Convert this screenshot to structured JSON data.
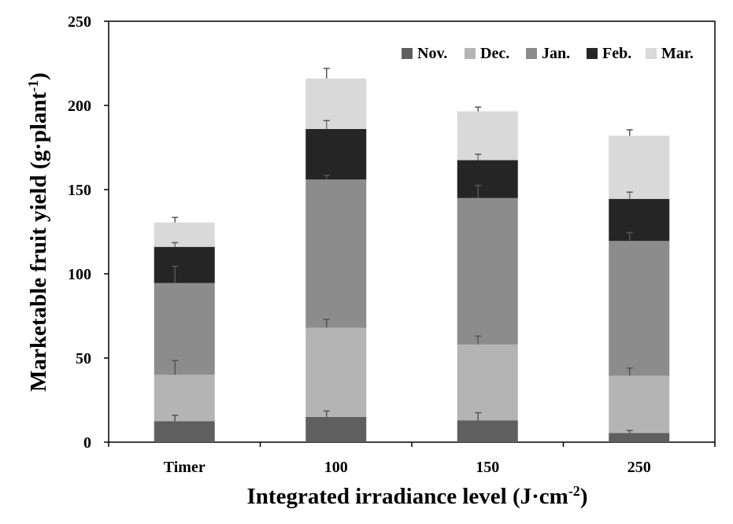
{
  "chart_data": {
    "type": "bar",
    "stacked": true,
    "title": "",
    "xlabel_main": "Integrated irradiance level (J·cm",
    "xlabel_sup": "-2",
    "xlabel_end": ")",
    "ylabel_main": "Marketable fruit yield (g·plant",
    "ylabel_sup": "-1",
    "ylabel_end": ")",
    "categories": [
      "Timer",
      "100",
      "150",
      "250"
    ],
    "ylim": [
      0,
      250
    ],
    "yticks": [
      0,
      50,
      100,
      150,
      200,
      250
    ],
    "grid": false,
    "legend_position": "top-right",
    "series": [
      {
        "name": "Nov.",
        "color": "#5f5f5f",
        "values": [
          12.5,
          15,
          13,
          5.5
        ],
        "errors": [
          3.5,
          3.5,
          4.5,
          1.5
        ]
      },
      {
        "name": "Dec.",
        "color": "#b4b4b4",
        "values": [
          27.5,
          53,
          45,
          34
        ],
        "errors": [
          8.5,
          5,
          5,
          4.5
        ]
      },
      {
        "name": "Jan.",
        "color": "#8c8c8c",
        "values": [
          54.5,
          88,
          87,
          80
        ],
        "errors": [
          10,
          2.5,
          7.5,
          5
        ]
      },
      {
        "name": "Feb.",
        "color": "#252525",
        "values": [
          21.5,
          30,
          22.5,
          25
        ],
        "errors": [
          2.5,
          5,
          3.5,
          4
        ]
      },
      {
        "name": "Mar.",
        "color": "#d9d9d9",
        "values": [
          14.5,
          30,
          29,
          37.5
        ],
        "errors": [
          3,
          6,
          2.5,
          3.5
        ]
      }
    ]
  }
}
